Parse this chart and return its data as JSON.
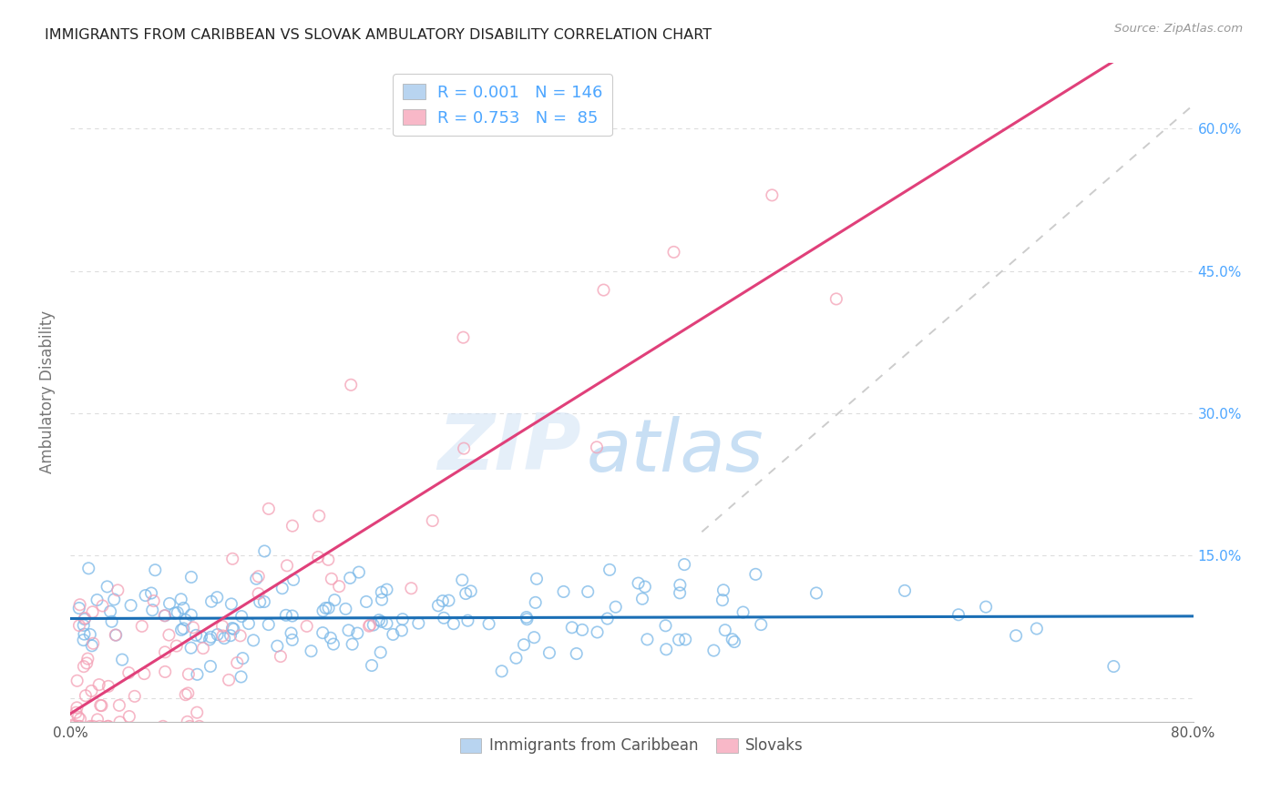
{
  "title": "IMMIGRANTS FROM CARIBBEAN VS SLOVAK AMBULATORY DISABILITY CORRELATION CHART",
  "source": "Source: ZipAtlas.com",
  "ylabel": "Ambulatory Disability",
  "watermark_zip": "ZIP",
  "watermark_atlas": "atlas",
  "x_min": 0.0,
  "x_max": 0.8,
  "y_min": -0.025,
  "y_max": 0.67,
  "x_ticks": [
    0.0,
    0.1,
    0.2,
    0.3,
    0.4,
    0.5,
    0.6,
    0.7,
    0.8
  ],
  "y_ticks": [
    0.0,
    0.15,
    0.3,
    0.45,
    0.6
  ],
  "caribbean_color": "#7ab8e8",
  "caribbean_face": "none",
  "slovak_color": "#f4a0b5",
  "slovak_face": "none",
  "trend_caribbean_color": "#1a6eb5",
  "trend_slovak_color": "#e0407a",
  "trend_dashed_color": "#cccccc",
  "background_color": "#ffffff",
  "grid_color": "#dddddd",
  "title_color": "#222222",
  "right_tick_color": "#4da6ff",
  "legend_box_caribbean": "#b8d4f0",
  "legend_box_slovak": "#f8b8c8",
  "N_caribbean": 146,
  "N_slovak": 85,
  "seed": 7
}
